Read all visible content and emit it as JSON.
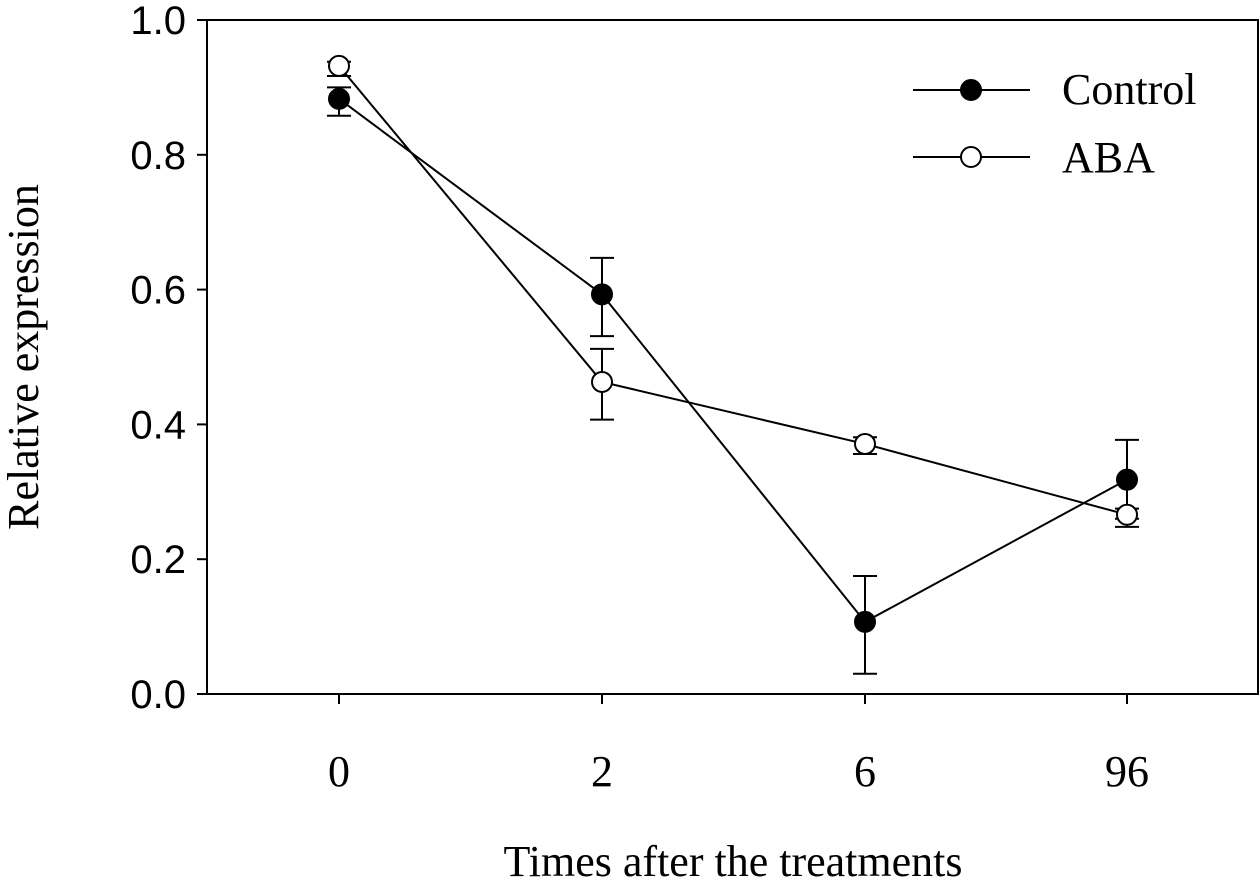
{
  "chart_data": {
    "type": "line",
    "xlabel": "Times after the treatments",
    "ylabel": "Relative expression",
    "categories": [
      "0",
      "2",
      "6",
      "96"
    ],
    "ylim": [
      0.0,
      1.0
    ],
    "yticks": [
      "0.0",
      "0.2",
      "0.4",
      "0.6",
      "0.8",
      "1.0"
    ],
    "grid": false,
    "legend_position": "top-right",
    "series": [
      {
        "name": "Control",
        "marker": "filled-circle",
        "color": "#000000",
        "values": [
          0.883,
          0.593,
          0.107,
          0.318
        ],
        "err_low": [
          0.858,
          0.531,
          0.03,
          0.26
        ],
        "err_high": [
          0.9,
          0.647,
          0.175,
          0.377
        ]
      },
      {
        "name": "ABA",
        "marker": "open-circle",
        "color": "#000000",
        "values": [
          0.932,
          0.463,
          0.371,
          0.266
        ],
        "err_low": [
          0.917,
          0.407,
          0.356,
          0.248
        ],
        "err_high": [
          0.938,
          0.512,
          0.381,
          0.275
        ]
      }
    ]
  }
}
